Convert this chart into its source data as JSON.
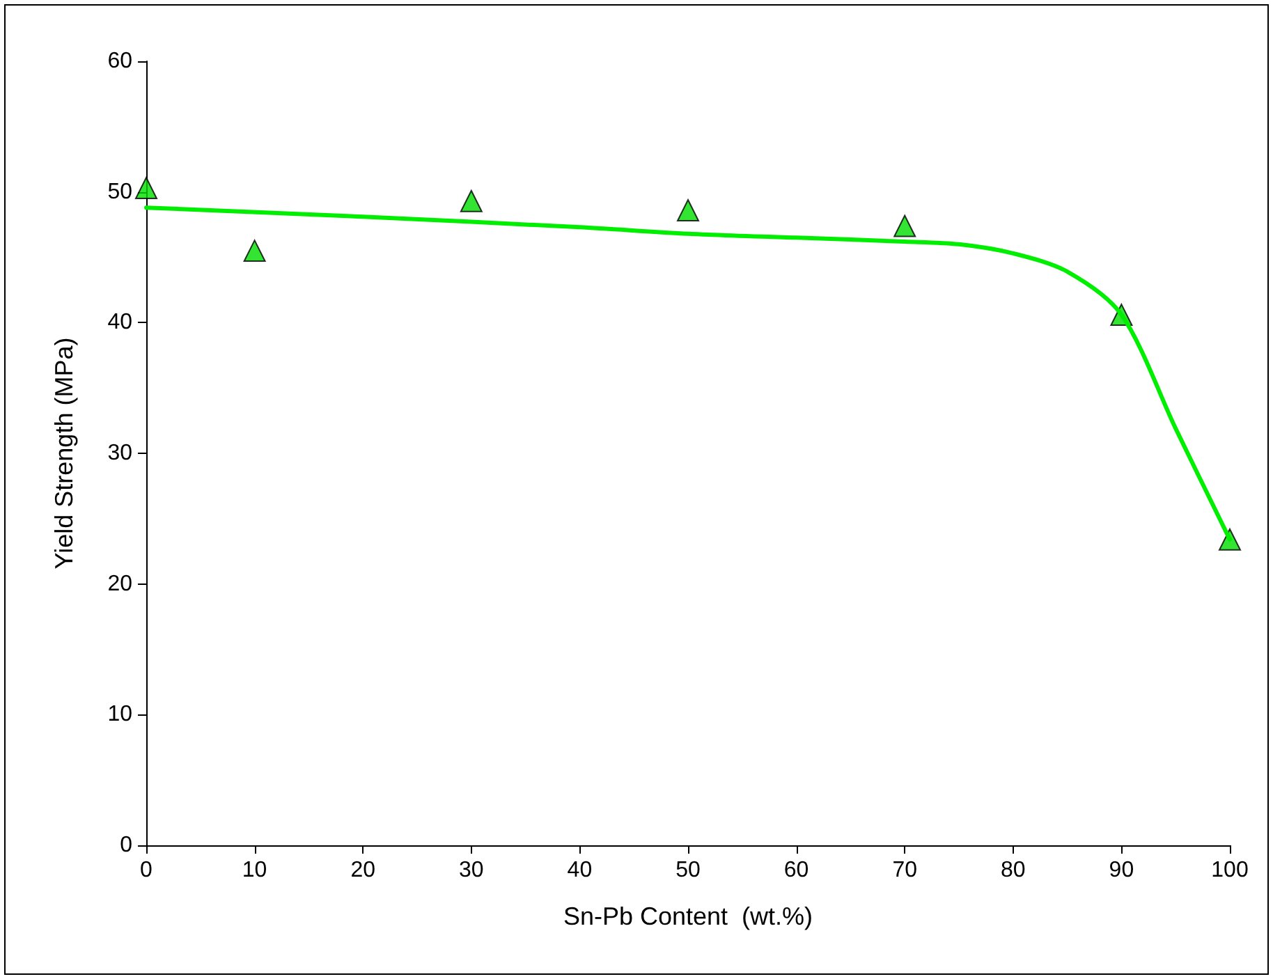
{
  "chart_data": {
    "type": "scatter",
    "xlabel": "Sn-Pb Content  (wt.%)",
    "ylabel": "Yield Strength (MPa)",
    "xlim": [
      0,
      100
    ],
    "xticks": [
      0,
      10,
      20,
      30,
      40,
      50,
      60,
      70,
      80,
      90,
      100
    ],
    "ylim": [
      0,
      60
    ],
    "yticks": [
      0,
      10,
      20,
      30,
      40,
      50,
      60
    ],
    "grid": false,
    "series": [
      {
        "type": "scatter",
        "marker": "triangle",
        "color": "#00dd00",
        "x": [
          0,
          10,
          30,
          50,
          70,
          90,
          100
        ],
        "values": [
          50.3,
          45.5,
          49.3,
          48.6,
          47.4,
          40.6,
          23.4
        ]
      },
      {
        "type": "line",
        "marker": "none",
        "line_style": "solid",
        "color": "#00ee00",
        "x": [
          0,
          20,
          40,
          50,
          60,
          70,
          75,
          80,
          85,
          90,
          95,
          100
        ],
        "values": [
          48.8,
          48.1,
          47.3,
          46.8,
          46.5,
          46.2,
          46.0,
          45.3,
          43.9,
          40.6,
          31.9,
          23.4
        ]
      }
    ]
  }
}
